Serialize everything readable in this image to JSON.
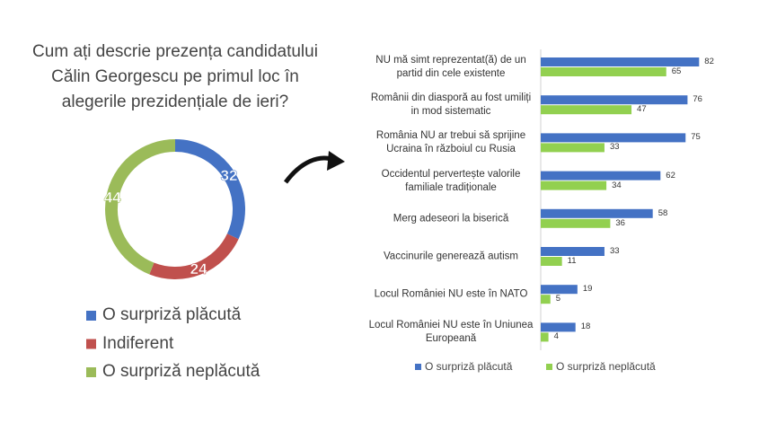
{
  "chart_data": [
    {
      "type": "donut",
      "title": "Cum ați descrie prezența candidatului Călin Georgescu pe primul loc în alegerile prezidențiale de ieri?",
      "categories": [
        "O surpriză plăcută",
        "Indiferent",
        "O surpriză neplăcută"
      ],
      "values": [
        32,
        24,
        44
      ],
      "colors": [
        "#4472c4",
        "#c0504d",
        "#9bbb59"
      ]
    },
    {
      "type": "hbar",
      "categories": [
        "NU mă simt reprezentat(ă) de un partid din cele existente",
        "Românii din diasporă au fost umiliți in mod sistematic",
        "România NU ar trebui să sprijine Ucraina în războiul cu Rusia",
        "Occidentul pervertește valorile familiale tradiționale",
        "Merg adeseori la biserică",
        "Vaccinurile generează autism",
        "Locul României NU este în NATO",
        "Locul României NU este în Uniunea Europeană"
      ],
      "series": [
        {
          "name": "O surpriză plăcută",
          "color": "#4472c4",
          "values": [
            82,
            76,
            75,
            62,
            58,
            33,
            19,
            18
          ]
        },
        {
          "name": "O surpriză neplăcută",
          "color": "#92d050",
          "values": [
            65,
            47,
            33,
            34,
            36,
            11,
            5,
            4
          ]
        }
      ]
    }
  ]
}
